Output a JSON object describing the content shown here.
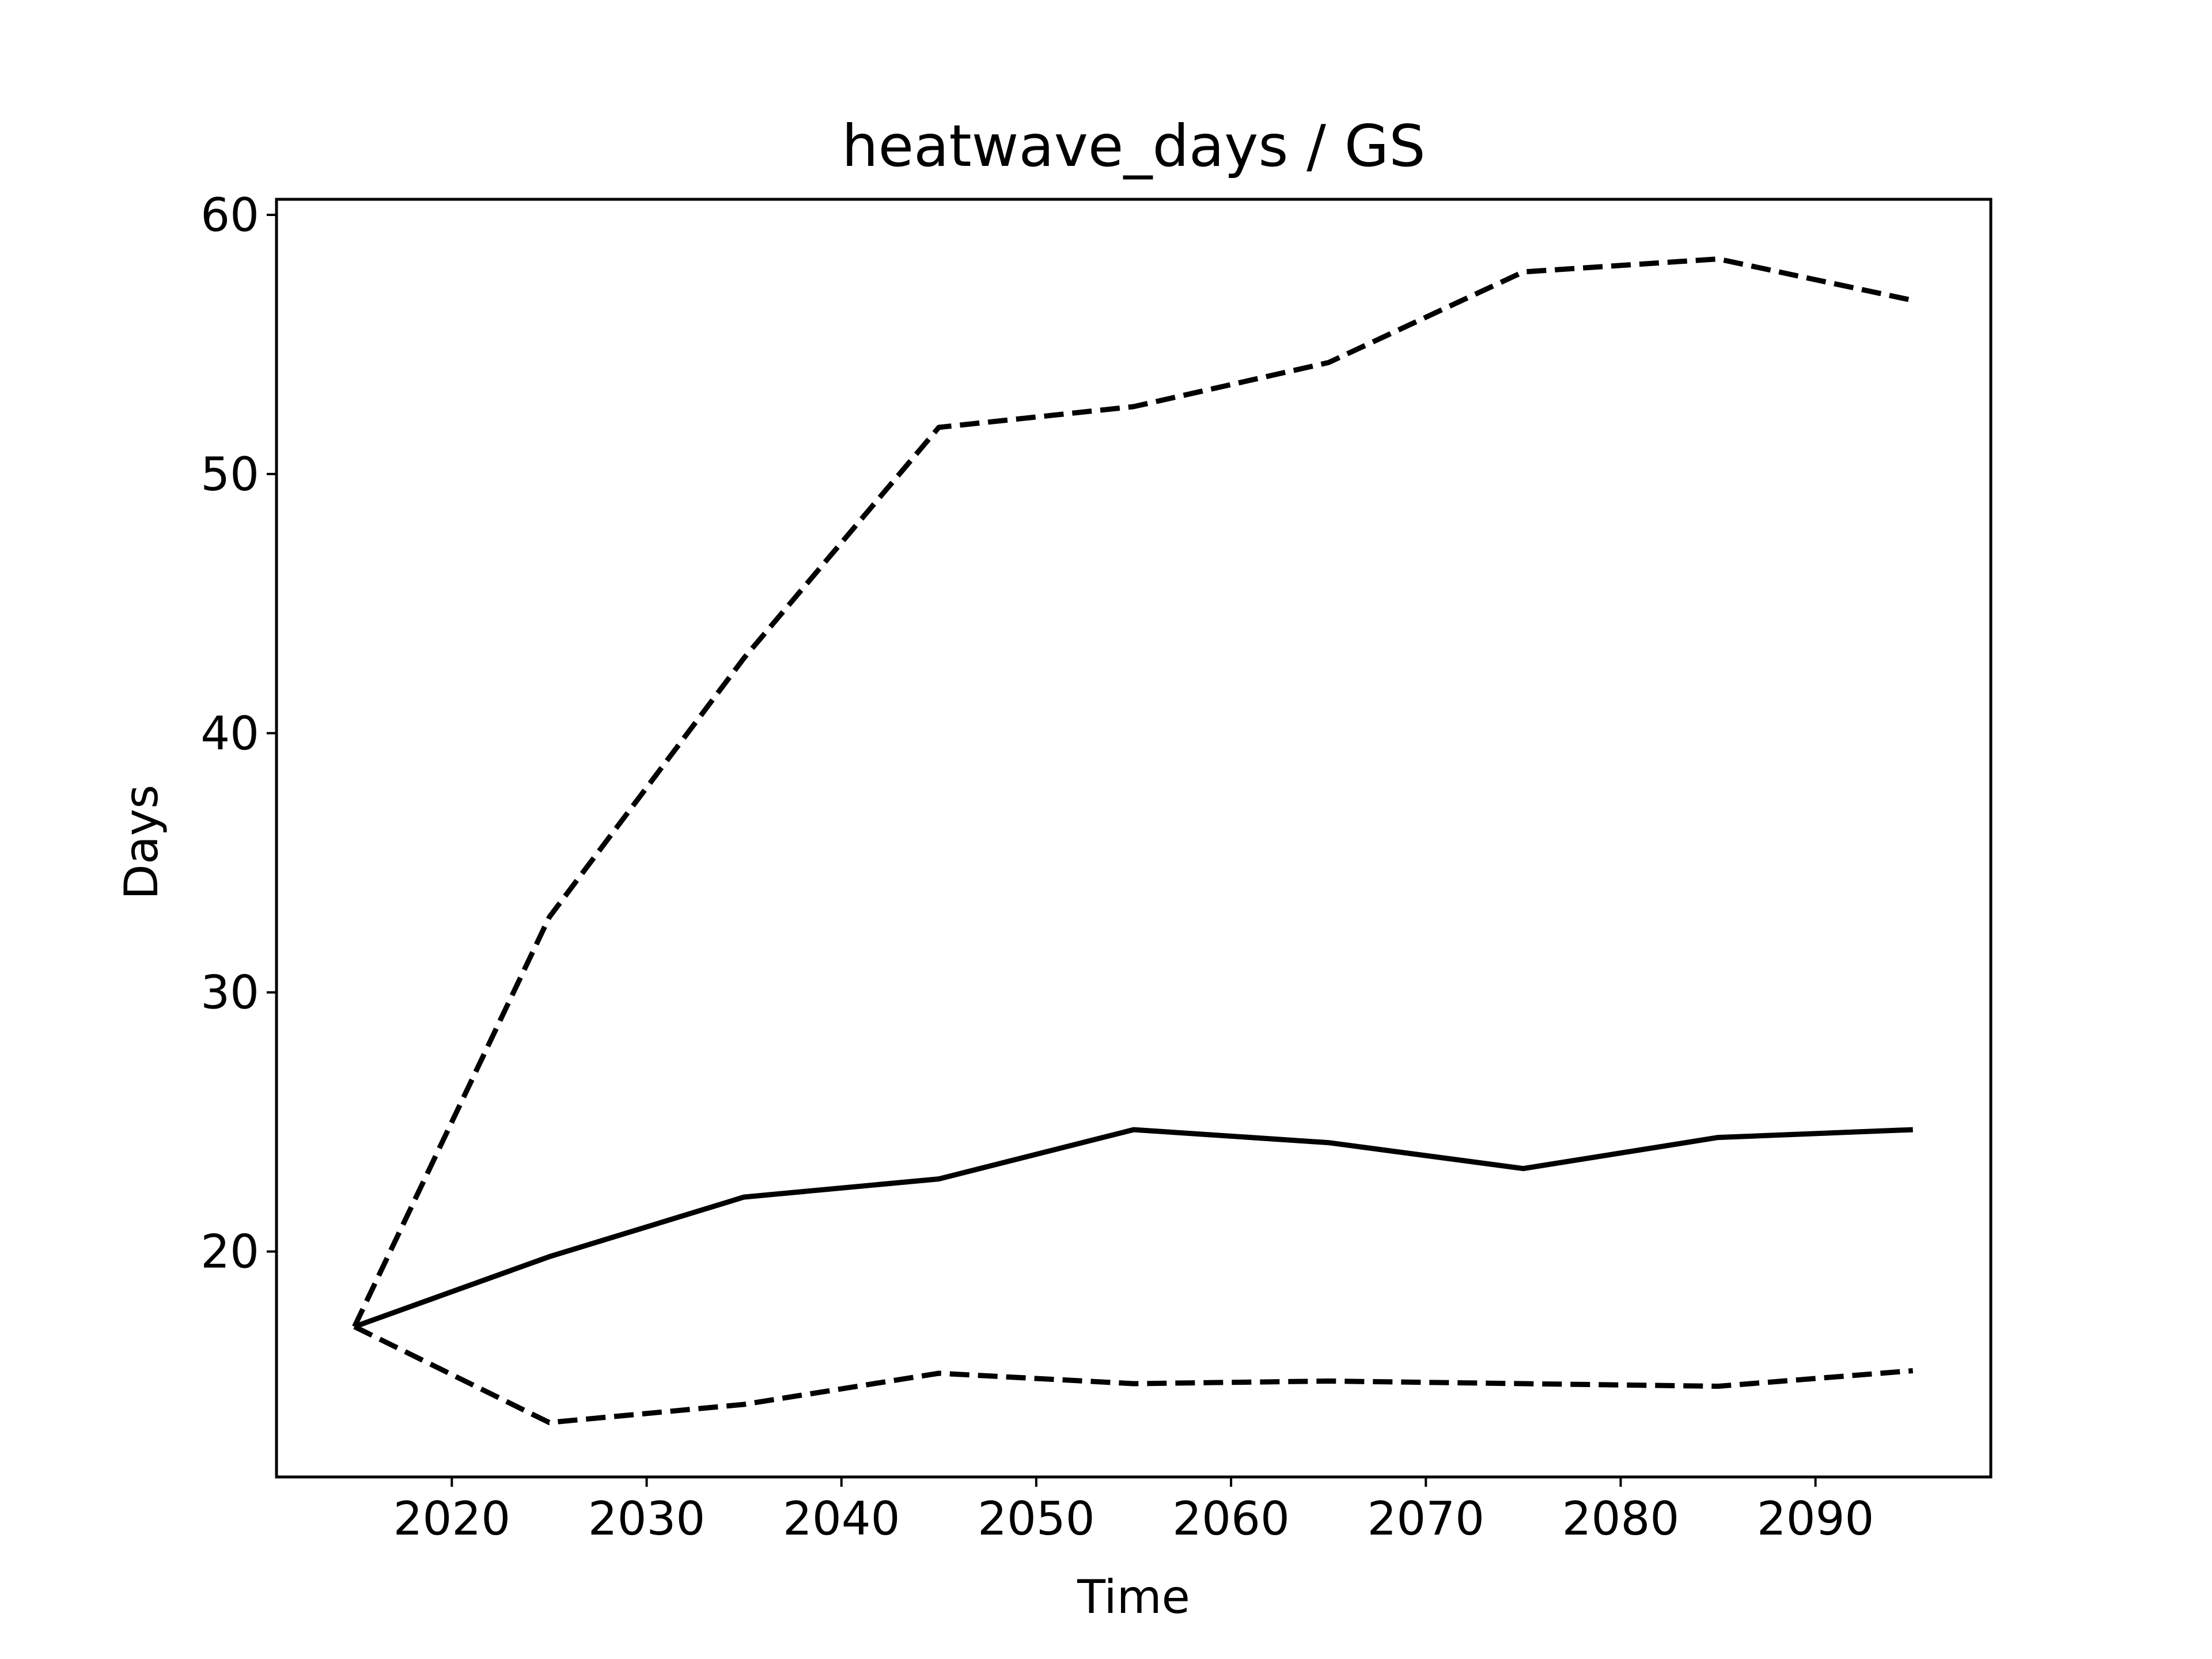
{
  "chart_data": {
    "type": "line",
    "title": "heatwave_days / GS",
    "xlabel": "Time",
    "ylabel": "Days",
    "xlim": [
      2011,
      2099
    ],
    "ylim": [
      11.3,
      60.6
    ],
    "xticks": [
      2020,
      2030,
      2040,
      2050,
      2060,
      2070,
      2080,
      2090
    ],
    "yticks": [
      20,
      30,
      40,
      50,
      60
    ],
    "grid": false,
    "x": [
      2015,
      2025,
      2035,
      2045,
      2055,
      2065,
      2075,
      2085,
      2095
    ],
    "series": [
      {
        "style": "solid",
        "color": "#000000",
        "values": [
          17.1,
          19.8,
          22.1,
          22.8,
          24.7,
          24.2,
          23.2,
          24.4,
          24.7
        ]
      },
      {
        "style": "dashed",
        "color": "#000000",
        "values": [
          17.1,
          32.9,
          42.9,
          51.8,
          52.6,
          54.3,
          57.8,
          58.3,
          56.7
        ]
      },
      {
        "style": "dashed",
        "color": "#000000",
        "values": [
          17.1,
          13.4,
          14.1,
          15.3,
          14.9,
          15.0,
          14.9,
          14.8,
          15.4
        ]
      }
    ]
  }
}
